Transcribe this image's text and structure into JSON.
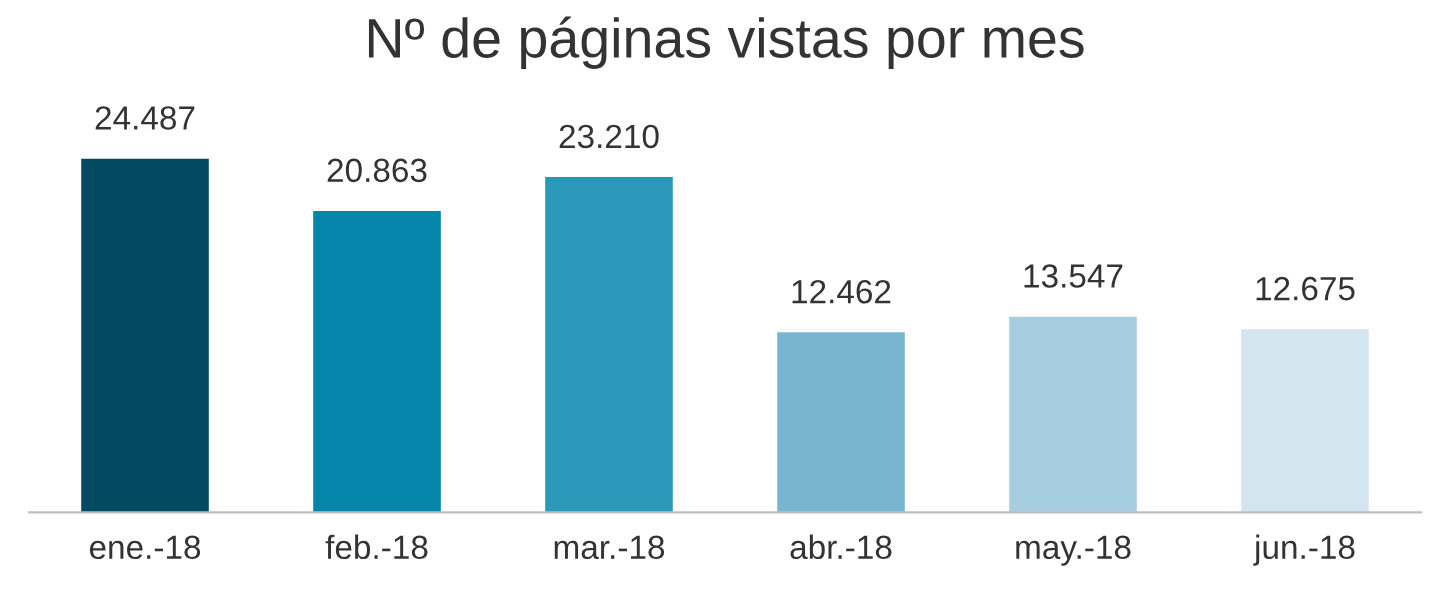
{
  "chart_data": {
    "type": "bar",
    "title": "Nº de páginas vistas por mes",
    "categories": [
      "ene.-18",
      "feb.-18",
      "mar.-18",
      "abr.-18",
      "may.-18",
      "jun.-18"
    ],
    "values": [
      24487,
      20863,
      23210,
      12462,
      13547,
      12675
    ],
    "value_labels": [
      "24.487",
      "20.863",
      "23.210",
      "12.462",
      "13.547",
      "12.675"
    ],
    "colors": [
      "#024a62",
      "#0585a9",
      "#2b98b9",
      "#79b5ce",
      "#a6cde0",
      "#d3e5ee"
    ],
    "grid": false,
    "legend": false
  }
}
